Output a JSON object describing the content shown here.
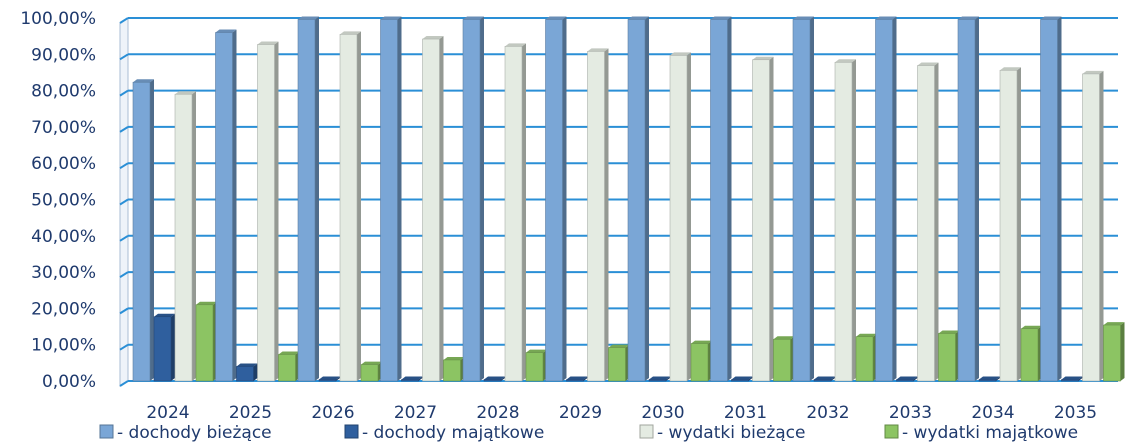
{
  "chart_data": {
    "type": "bar",
    "title": "",
    "xlabel": "",
    "ylabel": "",
    "ylim": [
      0,
      100
    ],
    "ytick_values": [
      0,
      10,
      20,
      30,
      40,
      50,
      60,
      70,
      80,
      90,
      100
    ],
    "ytick_labels": [
      "0,00%",
      "10,00%",
      "20,00%",
      "30,00%",
      "40,00%",
      "50,00%",
      "60,00%",
      "70,00%",
      "80,00%",
      "90,00%",
      "100,00%"
    ],
    "categories": [
      "2024",
      "2025",
      "2026",
      "2027",
      "2028",
      "2029",
      "2030",
      "2031",
      "2032",
      "2033",
      "2034",
      "2035"
    ],
    "series": [
      {
        "name": "- dochody bieżące",
        "color": "#7aa6d6",
        "values": [
          82.3,
          96.0,
          99.6,
          99.6,
          99.6,
          99.6,
          99.6,
          99.6,
          99.6,
          99.6,
          99.6,
          99.6
        ]
      },
      {
        "name": "- dochody majątkowe",
        "color": "#2f5f9e",
        "values": [
          17.7,
          4.0,
          0.4,
          0.4,
          0.4,
          0.4,
          0.4,
          0.4,
          0.4,
          0.4,
          0.4,
          0.4
        ]
      },
      {
        "name": "- wydatki bieżące",
        "color": "#e4ebe2",
        "values": [
          79.0,
          92.7,
          95.5,
          94.2,
          92.2,
          90.8,
          89.7,
          88.5,
          87.8,
          86.9,
          85.6,
          84.6
        ]
      },
      {
        "name": "- wydatki majątkowe",
        "color": "#8cc463",
        "values": [
          21.0,
          7.3,
          4.5,
          5.8,
          7.8,
          9.2,
          10.3,
          11.5,
          12.2,
          13.1,
          14.4,
          15.4
        ]
      }
    ],
    "grid": true,
    "legend_position": "bottom"
  }
}
